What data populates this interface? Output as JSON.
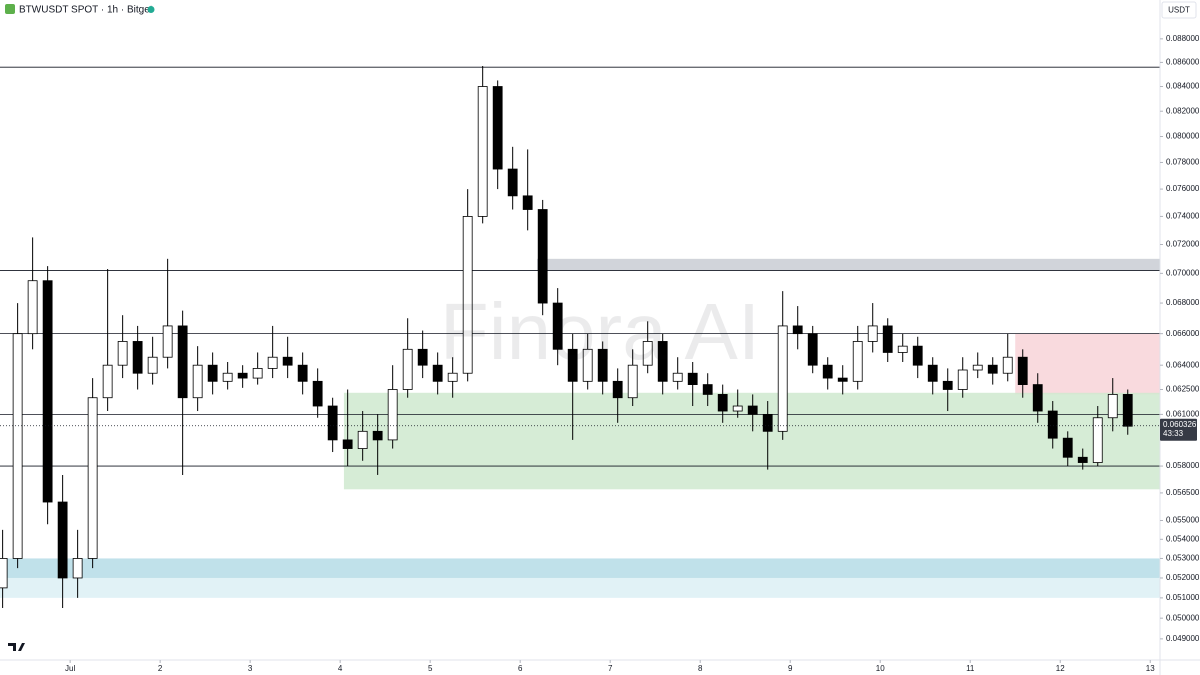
{
  "chart_data": {
    "type": "candlestick",
    "title": "BTWUSDT SPOT · 1h · Bitget",
    "currency": "USDT",
    "watermark": "Finora AI",
    "log_scale": true,
    "grid": false,
    "up_color": "#ffffff",
    "down_color": "#000000",
    "xlim": [
      -18.7,
      290.6
    ],
    "xticks": [
      {
        "value": 0,
        "label": "Jul"
      },
      {
        "value": 24,
        "label": "2"
      },
      {
        "value": 48,
        "label": "3"
      },
      {
        "value": 72,
        "label": "4"
      },
      {
        "value": 96,
        "label": "5"
      },
      {
        "value": 120,
        "label": "6"
      },
      {
        "value": 144,
        "label": "7"
      },
      {
        "value": 168,
        "label": "8"
      },
      {
        "value": 192,
        "label": "9"
      },
      {
        "value": 216,
        "label": "10"
      },
      {
        "value": 240,
        "label": "11"
      },
      {
        "value": 264,
        "label": "12"
      },
      {
        "value": 288,
        "label": "13"
      }
    ],
    "ylim": [
      0.048,
      0.0914
    ],
    "yticks": [
      {
        "value": 0.088,
        "label": "0.088000"
      },
      {
        "value": 0.086,
        "label": "0.086000"
      },
      {
        "value": 0.084,
        "label": "0.084000"
      },
      {
        "value": 0.082,
        "label": "0.082000"
      },
      {
        "value": 0.08,
        "label": "0.080000"
      },
      {
        "value": 0.078,
        "label": "0.078000"
      },
      {
        "value": 0.076,
        "label": "0.076000"
      },
      {
        "value": 0.074,
        "label": "0.074000"
      },
      {
        "value": 0.072,
        "label": "0.072000"
      },
      {
        "value": 0.07,
        "label": "0.070000"
      },
      {
        "value": 0.068,
        "label": "0.068000"
      },
      {
        "value": 0.066,
        "label": "0.066000"
      },
      {
        "value": 0.064,
        "label": "0.064000"
      },
      {
        "value": 0.0625,
        "label": "0.062500"
      },
      {
        "value": 0.061,
        "label": "0.061000"
      },
      {
        "value": 0.058,
        "label": "0.058000"
      },
      {
        "value": 0.0565,
        "label": "0.056500"
      },
      {
        "value": 0.055,
        "label": "0.055000"
      },
      {
        "value": 0.054,
        "label": "0.054000"
      },
      {
        "value": 0.053,
        "label": "0.053000"
      },
      {
        "value": 0.052,
        "label": "0.052000"
      },
      {
        "value": 0.051,
        "label": "0.051000"
      },
      {
        "value": 0.05,
        "label": "0.050000"
      },
      {
        "value": 0.049,
        "label": "0.049000"
      }
    ],
    "x": [
      -18,
      -14,
      -10,
      -6,
      -2,
      2,
      6,
      10,
      14,
      18,
      22,
      26,
      30,
      34,
      38,
      42,
      46,
      50,
      54,
      58,
      62,
      66,
      70,
      74,
      78,
      82,
      86,
      90,
      94,
      98,
      102,
      106,
      110,
      114,
      118,
      122,
      126,
      130,
      134,
      138,
      142,
      146,
      150,
      154,
      158,
      162,
      166,
      170,
      174,
      178,
      182,
      186,
      190,
      194,
      198,
      202,
      206,
      210,
      214,
      218,
      222,
      226,
      230,
      234,
      238,
      242,
      246,
      250,
      254,
      258,
      262,
      266,
      270,
      274,
      278,
      282
    ],
    "open": [
      0.0515,
      0.053,
      0.066,
      0.0695,
      0.056,
      0.052,
      0.053,
      0.062,
      0.064,
      0.0655,
      0.0635,
      0.0645,
      0.0665,
      0.062,
      0.064,
      0.063,
      0.0635,
      0.0632,
      0.0638,
      0.0645,
      0.064,
      0.063,
      0.0615,
      0.0595,
      0.059,
      0.06,
      0.0595,
      0.0625,
      0.065,
      0.064,
      0.063,
      0.0635,
      0.074,
      0.084,
      0.0775,
      0.0755,
      0.0745,
      0.068,
      0.065,
      0.063,
      0.065,
      0.063,
      0.062,
      0.064,
      0.0655,
      0.063,
      0.0635,
      0.0628,
      0.0622,
      0.0612,
      0.0615,
      0.061,
      0.06,
      0.0665,
      0.066,
      0.064,
      0.0632,
      0.063,
      0.0655,
      0.0665,
      0.0648,
      0.0652,
      0.064,
      0.063,
      0.0625,
      0.0637,
      0.064,
      0.0635,
      0.0645,
      0.0628,
      0.0612,
      0.0596,
      0.0585,
      0.0582,
      0.0608,
      0.0622
    ],
    "high": [
      0.0545,
      0.068,
      0.0725,
      0.0705,
      0.0575,
      0.0545,
      0.0632,
      0.0703,
      0.0672,
      0.0665,
      0.0658,
      0.071,
      0.0675,
      0.0652,
      0.0648,
      0.0642,
      0.064,
      0.0648,
      0.0665,
      0.0658,
      0.0648,
      0.0638,
      0.062,
      0.0625,
      0.0612,
      0.061,
      0.064,
      0.067,
      0.0662,
      0.0648,
      0.0645,
      0.076,
      0.0857,
      0.0845,
      0.0792,
      0.079,
      0.0752,
      0.069,
      0.066,
      0.066,
      0.0655,
      0.0638,
      0.065,
      0.0668,
      0.066,
      0.0645,
      0.0642,
      0.0635,
      0.0628,
      0.0625,
      0.0622,
      0.0618,
      0.0688,
      0.0678,
      0.0665,
      0.0645,
      0.064,
      0.0665,
      0.068,
      0.067,
      0.066,
      0.0658,
      0.0645,
      0.0638,
      0.0645,
      0.0648,
      0.0645,
      0.066,
      0.065,
      0.0635,
      0.0618,
      0.06,
      0.059,
      0.0615,
      0.0632,
      0.0625
    ],
    "low": [
      0.0505,
      0.0525,
      0.065,
      0.0548,
      0.0505,
      0.051,
      0.0525,
      0.0612,
      0.0632,
      0.0625,
      0.0628,
      0.0638,
      0.0575,
      0.0612,
      0.0622,
      0.0625,
      0.0626,
      0.0628,
      0.0632,
      0.0632,
      0.0622,
      0.0608,
      0.0588,
      0.058,
      0.0583,
      0.0575,
      0.059,
      0.062,
      0.0632,
      0.0622,
      0.062,
      0.063,
      0.0735,
      0.076,
      0.0745,
      0.073,
      0.0672,
      0.064,
      0.0595,
      0.0625,
      0.0622,
      0.0605,
      0.0615,
      0.0635,
      0.0622,
      0.0625,
      0.0615,
      0.0615,
      0.0605,
      0.0608,
      0.06,
      0.0578,
      0.0595,
      0.065,
      0.0635,
      0.0625,
      0.0622,
      0.0625,
      0.0648,
      0.0642,
      0.0642,
      0.0632,
      0.0622,
      0.0612,
      0.062,
      0.0632,
      0.0628,
      0.063,
      0.062,
      0.0605,
      0.059,
      0.058,
      0.0578,
      0.058,
      0.06,
      0.0598
    ],
    "close": [
      0.053,
      0.066,
      0.0695,
      0.056,
      0.052,
      0.053,
      0.062,
      0.064,
      0.0655,
      0.0635,
      0.0645,
      0.0665,
      0.062,
      0.064,
      0.063,
      0.0635,
      0.0632,
      0.0638,
      0.0645,
      0.064,
      0.063,
      0.0615,
      0.0595,
      0.059,
      0.06,
      0.0595,
      0.0625,
      0.065,
      0.064,
      0.063,
      0.0635,
      0.074,
      0.084,
      0.0775,
      0.0755,
      0.0745,
      0.068,
      0.065,
      0.063,
      0.065,
      0.063,
      0.062,
      0.064,
      0.0655,
      0.063,
      0.0635,
      0.0628,
      0.0622,
      0.0612,
      0.0615,
      0.061,
      0.06,
      0.0665,
      0.066,
      0.064,
      0.0632,
      0.063,
      0.0655,
      0.0665,
      0.0648,
      0.0652,
      0.064,
      0.063,
      0.0625,
      0.0637,
      0.064,
      0.0635,
      0.0645,
      0.0628,
      0.0612,
      0.0596,
      0.0585,
      0.0582,
      0.0608,
      0.0622,
      0.0603
    ],
    "levels": [
      0.0856,
      0.0702,
      0.066,
      0.061,
      0.058
    ],
    "zones": [
      {
        "x_start": 124.5,
        "low": 0.0702,
        "high": 0.071,
        "color": "#c9ccd3"
      },
      {
        "x_start": 252,
        "low": 0.0622,
        "high": 0.066,
        "color": "#f8d3d8"
      },
      {
        "x_start": 73,
        "low": 0.0567,
        "high": 0.0623,
        "color": "#cfe9cf"
      },
      {
        "x_start": -18.7,
        "low": 0.052,
        "high": 0.053,
        "color": "#b5dce6"
      },
      {
        "x_start": -18.7,
        "low": 0.051,
        "high": 0.052,
        "color": "#dcf0f4"
      }
    ],
    "last_price": 0.060326,
    "countdown": "43:33"
  }
}
